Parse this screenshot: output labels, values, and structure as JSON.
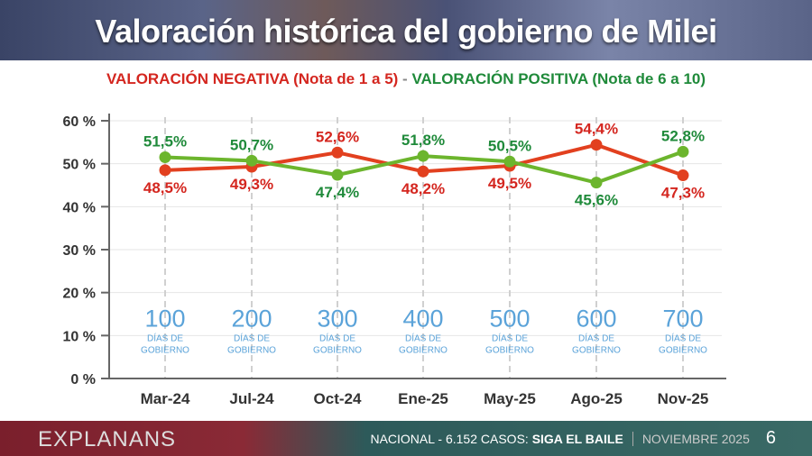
{
  "title": "Valoración histórica del gobierno de Milei",
  "subtitle": {
    "negative": "VALORACIÓN NEGATIVA (Nota de 1 a 5)",
    "separator": "-",
    "positive": "VALORACIÓN POSITIVA (Nota de 6 a 10)"
  },
  "footer": {
    "brand": "EXPLANANS",
    "scope": "NACIONAL - 6.152 CASOS:",
    "survey": "SIGA EL BAILE",
    "date": "NOVIEMBRE 2025",
    "page": "6"
  },
  "chart_data": {
    "type": "line",
    "categories": [
      "Mar-24",
      "Jul-24",
      "Oct-24",
      "Ene-25",
      "May-25",
      "Ago-25",
      "Nov-25"
    ],
    "yticks": [
      "0 %",
      "10 %",
      "20 %",
      "30 %",
      "40 %",
      "50 %",
      "60 %"
    ],
    "ylim": [
      0,
      60
    ],
    "grid": "vertical dashed + horizontal",
    "series": [
      {
        "name": "VALORACIÓN NEGATIVA (Nota de 1 a 5)",
        "color": "#e2401f",
        "label_color": "#d4261f",
        "values": [
          48.5,
          49.3,
          52.6,
          48.2,
          49.5,
          54.4,
          47.3
        ],
        "labels": [
          "48,5%",
          "49,3%",
          "52,6%",
          "48,2%",
          "49,5%",
          "54,4%",
          "47,3%"
        ]
      },
      {
        "name": "VALORACIÓN POSITIVA (Nota de 6 a 10)",
        "color": "#6cb52d",
        "label_color": "#1f8a3a",
        "values": [
          51.5,
          50.7,
          47.4,
          51.8,
          50.5,
          45.6,
          52.8
        ],
        "labels": [
          "51,5%",
          "50,7%",
          "47,4%",
          "51,8%",
          "50,5%",
          "45,6%",
          "52,8%"
        ]
      }
    ],
    "annotations": [
      {
        "number": "100",
        "text1": "DÍAS DE",
        "text2": "GOBIERNO"
      },
      {
        "number": "200",
        "text1": "DÍAS DE",
        "text2": "GOBIERNO"
      },
      {
        "number": "300",
        "text1": "DÍAS DE",
        "text2": "GOBIERNO"
      },
      {
        "number": "400",
        "text1": "DÍAS DE",
        "text2": "GOBIERNO"
      },
      {
        "number": "500",
        "text1": "DÍAS DE",
        "text2": "GOBIERNO"
      },
      {
        "number": "600",
        "text1": "DÍAS DE",
        "text2": "GOBIERNO"
      },
      {
        "number": "700",
        "text1": "DÍAS DE",
        "text2": "GOBIERNO"
      }
    ],
    "annotation_color": "#5ba3d9"
  }
}
